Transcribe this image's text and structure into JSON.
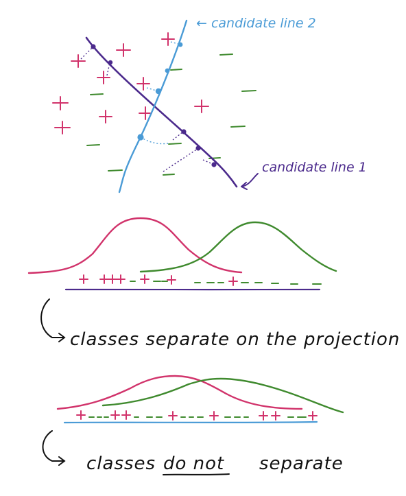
{
  "colors": {
    "plus_class": "#d1336b",
    "minus_class": "#3f8a2e",
    "line1": "#4b2a8c",
    "line2": "#4a9bd6",
    "ink": "#111111"
  },
  "labels": {
    "candidate_line_2": "← candidate line 2",
    "candidate_line_1": "candidate line 1",
    "separate_note": "classes separate on the projection",
    "no_separate_prefix": "classes",
    "no_separate_emph": "do not",
    "no_separate_suffix": "separate"
  },
  "projection1": {
    "symbols": "+ +++ -+-- +   - - - + - - - - -"
  },
  "projection2": {
    "symbols": "+ - - + + - - - + - - - - + - - - - + + - +"
  }
}
